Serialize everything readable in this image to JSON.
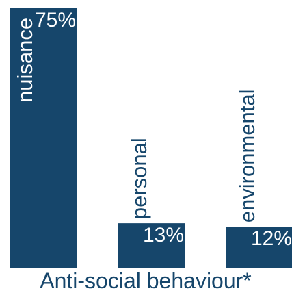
{
  "chart_data": {
    "type": "bar",
    "title": "Anti-social behaviour*",
    "categories": [
      "nuisance",
      "personal",
      "environmental"
    ],
    "values": [
      75,
      13,
      12
    ],
    "value_labels": [
      "75%",
      "13%",
      "12%"
    ],
    "unit": "%",
    "ylim": [
      0,
      75
    ],
    "grid": false,
    "legend": "none",
    "bar_color": "#16466b",
    "label_color_inside": "#ffffff",
    "label_color_outside": "#16466b"
  }
}
